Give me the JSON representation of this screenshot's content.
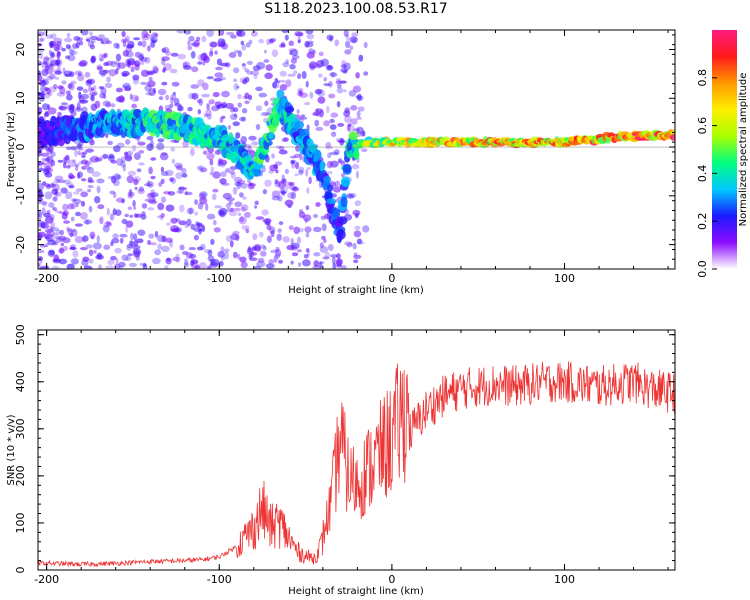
{
  "title": "S118.2023.100.08.53.R17",
  "chart_data": [
    {
      "type": "heatmap",
      "xlabel": "Height of straight line (km)",
      "ylabel": "Frequency (Hz)",
      "xlim": [
        -205,
        164
      ],
      "ylim": [
        -25,
        24
      ],
      "x_ticks": [
        -200,
        -100,
        0,
        100
      ],
      "y_ticks": [
        -20,
        -10,
        0,
        10,
        20
      ],
      "colorbar": {
        "label": "Normalized spectral amplitude",
        "range": [
          0,
          1
        ],
        "ticks": [
          0.0,
          0.2,
          0.4,
          0.6,
          0.8
        ],
        "tick_labels": [
          "0.0",
          "0.2",
          "0.4",
          "0.6",
          "0.8"
        ],
        "colormap": [
          "#ffffff",
          "#8c0cff",
          "#1a1aff",
          "#00c8ff",
          "#00ff80",
          "#aaff00",
          "#ffee00",
          "#ff9900",
          "#ff1a1a",
          "#ff1a80"
        ]
      },
      "ridge": [
        {
          "x": -200,
          "y": 3,
          "amp": 0.2
        },
        {
          "x": -180,
          "y": 4,
          "amp": 0.3
        },
        {
          "x": -160,
          "y": 5,
          "amp": 0.35
        },
        {
          "x": -140,
          "y": 5,
          "amp": 0.45
        },
        {
          "x": -120,
          "y": 4,
          "amp": 0.45
        },
        {
          "x": -100,
          "y": 2,
          "amp": 0.4
        },
        {
          "x": -90,
          "y": -1,
          "amp": 0.4
        },
        {
          "x": -80,
          "y": -5,
          "amp": 0.45
        },
        {
          "x": -65,
          "y": 9,
          "amp": 0.45
        },
        {
          "x": -55,
          "y": 3,
          "amp": 0.35
        },
        {
          "x": -40,
          "y": -5,
          "amp": 0.3
        },
        {
          "x": -30,
          "y": -18,
          "amp": 0.25
        },
        {
          "x": -25,
          "y": 0,
          "amp": 0.4
        },
        {
          "x": -15,
          "y": 1,
          "amp": 0.6
        },
        {
          "x": 0,
          "y": 1,
          "amp": 0.7
        },
        {
          "x": 50,
          "y": 1,
          "amp": 0.8
        },
        {
          "x": 100,
          "y": 1,
          "amp": 0.8
        },
        {
          "x": 130,
          "y": 2,
          "amp": 0.85
        },
        {
          "x": 160,
          "y": 2.5,
          "amp": 0.9
        }
      ]
    },
    {
      "type": "line",
      "xlabel": "Height of straight line (km)",
      "ylabel": "SNR (10 * v/v)",
      "xlim": [
        -205,
        164
      ],
      "ylim": [
        0,
        510
      ],
      "x_ticks": [
        -200,
        -100,
        0,
        100
      ],
      "y_ticks": [
        0,
        100,
        200,
        300,
        400,
        500
      ],
      "series": [
        {
          "color": "#ee3333",
          "x": [
            -205,
            -180,
            -160,
            -140,
            -120,
            -110,
            -100,
            -90,
            -80,
            -75,
            -70,
            -65,
            -60,
            -55,
            -50,
            -45,
            -40,
            -35,
            -30,
            -25,
            -20,
            -15,
            -10,
            -5,
            0,
            10,
            20,
            30,
            40,
            50,
            60,
            70,
            80,
            90,
            100,
            110,
            120,
            130,
            140,
            150,
            164
          ],
          "y": [
            15,
            12,
            14,
            18,
            20,
            22,
            28,
            50,
            90,
            130,
            90,
            100,
            70,
            40,
            30,
            25,
            60,
            120,
            230,
            160,
            150,
            170,
            190,
            210,
            230,
            290,
            340,
            370,
            385,
            390,
            395,
            390,
            395,
            400,
            400,
            395,
            390,
            395,
            400,
            385,
            375
          ]
        }
      ]
    }
  ]
}
